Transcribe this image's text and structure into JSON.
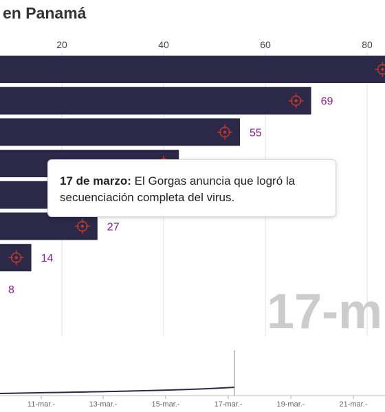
{
  "title": "en Panamá",
  "date_watermark": "17-m",
  "annotation": {
    "date": "17 de marzo:",
    "text": "El Gorgas anuncia que logró la secuenciación completa del virus."
  },
  "colors": {
    "bar": "#2b2848",
    "value_label": "#8b1a8b",
    "marker": "#c0392b",
    "grid": "#e2e2e2",
    "watermark": "#cccccc",
    "tick_label": "#444444",
    "timeline_line": "#2b2848",
    "timeline_cursor": "#888888"
  },
  "chart_data": {
    "type": "bar",
    "orientation": "horizontal",
    "title": "en Panamá",
    "x_ticks": [
      20,
      40,
      60,
      80
    ],
    "values": [
      86,
      69,
      55,
      43,
      37,
      27,
      14,
      8
    ],
    "labels": [
      "",
      "69",
      "55",
      "",
      "",
      "27",
      "14",
      "8"
    ],
    "grid": true,
    "timeline": {
      "ticks": [
        "11-mar.-",
        "13-mar.-",
        "15-mar.-",
        "17-mar.-",
        "19-mar.-",
        "21-mar.-"
      ],
      "current": "17-mar.-"
    }
  }
}
